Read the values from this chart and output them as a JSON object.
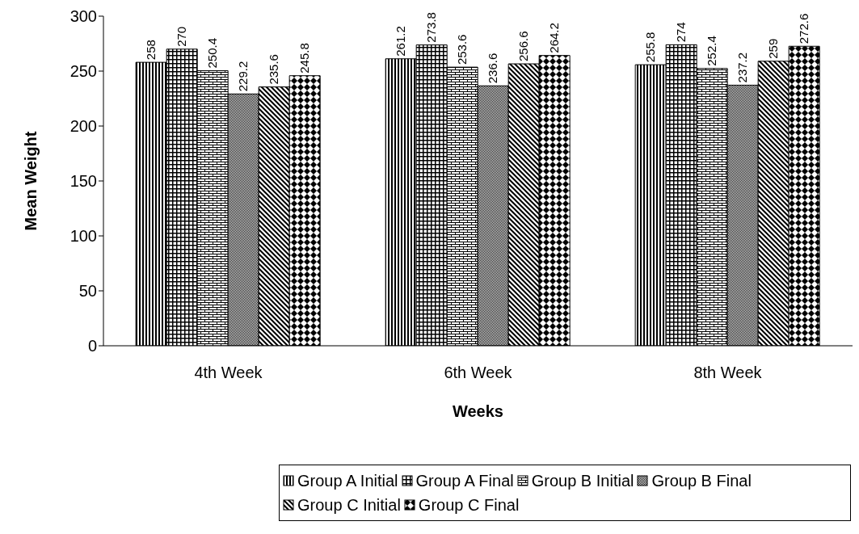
{
  "chart_data": {
    "type": "bar",
    "xlabel": "Weeks",
    "ylabel": "Mean Weight",
    "categories": [
      "4th Week",
      "6th Week",
      "8th Week"
    ],
    "series": [
      {
        "name": "Group A Initial",
        "color": "#000000",
        "values": [
          258,
          261.2,
          255.8
        ]
      },
      {
        "name": "Group A Final",
        "color": "#000000",
        "values": [
          270,
          273.8,
          274
        ]
      },
      {
        "name": "Group B Initial",
        "color": "#000000",
        "values": [
          250.4,
          253.6,
          252.4
        ]
      },
      {
        "name": "Group B Final",
        "color": "#000000",
        "values": [
          229.2,
          236.6,
          237.2
        ]
      },
      {
        "name": "Group C Initial",
        "color": "#000000",
        "values": [
          235.6,
          256.6,
          259
        ]
      },
      {
        "name": "Group C Final",
        "color": "#000000",
        "values": [
          245.8,
          264.2,
          272.6
        ]
      }
    ],
    "ylim": [
      0,
      300
    ],
    "yticks": [
      0,
      50,
      100,
      150,
      200,
      250,
      300
    ],
    "grid": false,
    "legend": "bottom",
    "data_labels": true
  }
}
